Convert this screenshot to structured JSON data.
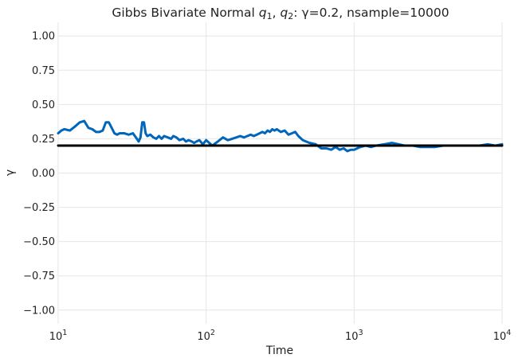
{
  "chart_data": {
    "type": "line",
    "title_parts": {
      "prefix": "Gibbs Bivariate Normal ",
      "q": "q",
      "sub1": "1",
      "comma": ", ",
      "sub2": "2",
      "suffix": ": γ=0.2, nsample=10000"
    },
    "xlabel": "Time",
    "ylabel": "γ",
    "xscale": "log",
    "xlim": [
      10,
      10000
    ],
    "ylim": [
      -1.1,
      1.1
    ],
    "grid": true,
    "xticks": [
      {
        "value": 10,
        "base": "10",
        "exp": "1"
      },
      {
        "value": 100,
        "base": "10",
        "exp": "2"
      },
      {
        "value": 1000,
        "base": "10",
        "exp": "3"
      },
      {
        "value": 10000,
        "base": "10",
        "exp": "4"
      }
    ],
    "yticks": [
      {
        "value": 1.0,
        "label": "1.00"
      },
      {
        "value": 0.75,
        "label": "0.75"
      },
      {
        "value": 0.5,
        "label": "0.50"
      },
      {
        "value": 0.25,
        "label": "0.25"
      },
      {
        "value": 0.0,
        "label": "0.00"
      },
      {
        "value": -0.25,
        "label": "−0.25"
      },
      {
        "value": -0.5,
        "label": "−0.50"
      },
      {
        "value": -0.75,
        "label": "−0.75"
      },
      {
        "value": -1.0,
        "label": "−1.00"
      }
    ],
    "series": [
      {
        "color": "#0066bb",
        "x": [
          10,
          10.5,
          11,
          12,
          13,
          14,
          15,
          16,
          17,
          18,
          19,
          20,
          21,
          22,
          23,
          24,
          25,
          26,
          28,
          30,
          32,
          34,
          35,
          36,
          37,
          38,
          39,
          40,
          42,
          44,
          46,
          48,
          50,
          52,
          55,
          58,
          60,
          63,
          66,
          70,
          73,
          76,
          80,
          83,
          86,
          90,
          95,
          100,
          105,
          110,
          120,
          130,
          140,
          150,
          160,
          170,
          180,
          190,
          200,
          210,
          220,
          230,
          240,
          250,
          260,
          270,
          280,
          290,
          300,
          320,
          340,
          360,
          380,
          400,
          420,
          450,
          500,
          550,
          600,
          650,
          700,
          750,
          800,
          850,
          900,
          950,
          1000,
          1100,
          1200,
          1300,
          1400,
          1600,
          1800,
          2000,
          2200,
          2500,
          2800,
          3000,
          3500,
          4000,
          4500,
          5000,
          6000,
          7000,
          8000,
          9000,
          10000
        ],
        "y": [
          0.29,
          0.31,
          0.32,
          0.31,
          0.34,
          0.37,
          0.38,
          0.33,
          0.32,
          0.3,
          0.3,
          0.31,
          0.37,
          0.37,
          0.33,
          0.29,
          0.28,
          0.29,
          0.29,
          0.28,
          0.29,
          0.25,
          0.23,
          0.26,
          0.37,
          0.37,
          0.29,
          0.27,
          0.28,
          0.26,
          0.25,
          0.27,
          0.25,
          0.27,
          0.26,
          0.25,
          0.27,
          0.26,
          0.24,
          0.25,
          0.23,
          0.24,
          0.23,
          0.22,
          0.23,
          0.24,
          0.21,
          0.24,
          0.22,
          0.2,
          0.23,
          0.26,
          0.24,
          0.25,
          0.26,
          0.27,
          0.26,
          0.27,
          0.28,
          0.27,
          0.28,
          0.29,
          0.3,
          0.29,
          0.31,
          0.3,
          0.32,
          0.31,
          0.32,
          0.3,
          0.31,
          0.28,
          0.29,
          0.3,
          0.27,
          0.24,
          0.22,
          0.21,
          0.18,
          0.18,
          0.17,
          0.19,
          0.17,
          0.18,
          0.16,
          0.17,
          0.17,
          0.19,
          0.2,
          0.19,
          0.2,
          0.21,
          0.22,
          0.21,
          0.2,
          0.2,
          0.19,
          0.19,
          0.19,
          0.2,
          0.2,
          0.2,
          0.2,
          0.2,
          0.21,
          0.2,
          0.21
        ]
      },
      {
        "color": "#000000",
        "x": [
          10,
          10000
        ],
        "y": [
          0.2,
          0.2
        ]
      }
    ]
  }
}
